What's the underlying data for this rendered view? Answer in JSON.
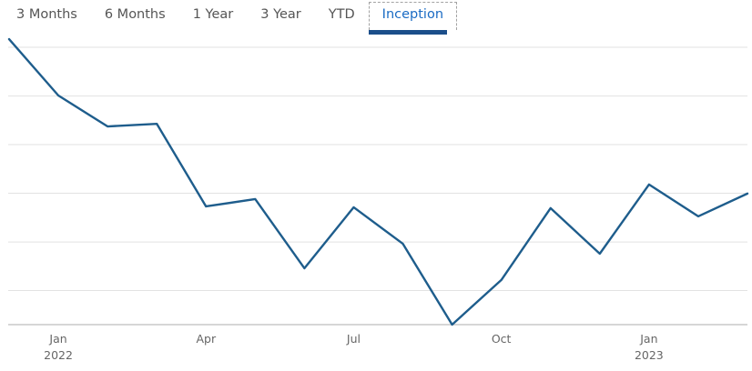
{
  "tabbar": {
    "tabs": [
      {
        "label": "3 Months",
        "active": false
      },
      {
        "label": "6 Months",
        "active": false
      },
      {
        "label": "1 Year",
        "active": false
      },
      {
        "label": "3 Year",
        "active": false
      },
      {
        "label": "YTD",
        "active": false
      },
      {
        "label": "Inception",
        "active": true
      }
    ]
  },
  "colors": {
    "accent_bar": "#1b4e8a",
    "active_tab_text": "#1a6bc4",
    "tab_text": "#555555",
    "line": "#1e5d8c",
    "gridline": "#e2e2e2",
    "axis": "#c9c9c9",
    "tick_text": "#666666"
  },
  "chart_data": {
    "type": "line",
    "title": "",
    "xlabel": "",
    "ylabel": "",
    "y_scale_note": "No y-axis labels are shown in the chart; values are expressed as percent of plot height above the bottom axis line (0 = baseline, 100 = top). 6 unlabeled horizontal gridlines are visible.",
    "categories": [
      "Dec 2021",
      "Jan 2022",
      "Feb 2022",
      "Mar 2022",
      "Apr 2022",
      "May 2022",
      "Jun 2022",
      "Jul 2022",
      "Aug 2022",
      "Sep 2022",
      "Oct 2022",
      "Nov 2022",
      "Dec 2022",
      "Jan 2023",
      "Feb 2023",
      "Mar 2023"
    ],
    "series": [
      {
        "name": "Inception performance",
        "values": [
          97.8,
          78.5,
          67.9,
          68.8,
          40.5,
          43.0,
          19.3,
          40.2,
          27.7,
          0.0,
          15.3,
          39.9,
          24.3,
          48.0,
          37.1,
          44.9
        ]
      }
    ],
    "ylim": [
      0,
      100
    ],
    "grid": true,
    "gridline_values": [
      11.7,
      28.3,
      45.0,
      61.7,
      78.3,
      95.0
    ],
    "legend": false,
    "x_ticks": [
      {
        "label": "Jan",
        "year": "2022",
        "index": 1
      },
      {
        "label": "Apr",
        "year": "",
        "index": 4
      },
      {
        "label": "Jul",
        "year": "",
        "index": 7
      },
      {
        "label": "Oct",
        "year": "",
        "index": 10
      },
      {
        "label": "Jan",
        "year": "2023",
        "index": 13
      }
    ]
  }
}
